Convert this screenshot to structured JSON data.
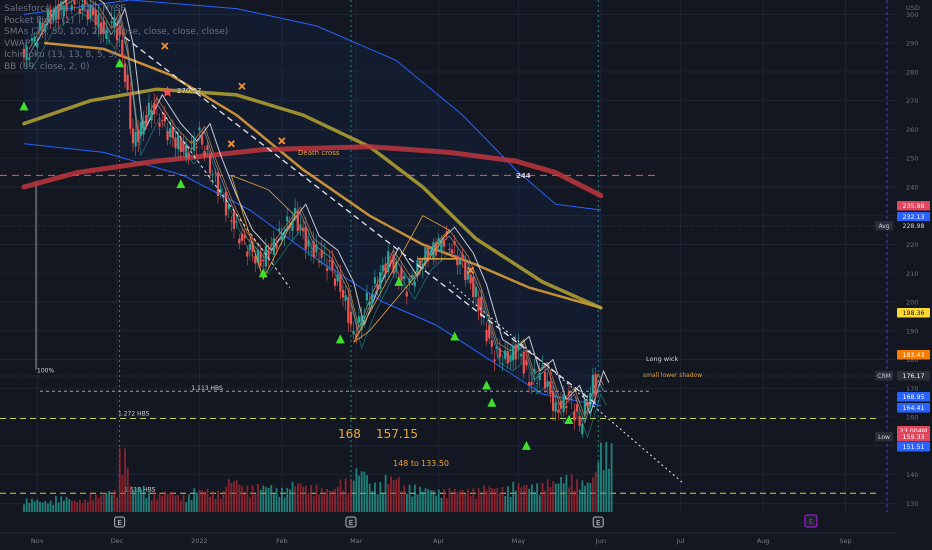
{
  "chart_data": {
    "type": "candlestick",
    "symbol": "CRM",
    "currency": "USD",
    "legend": [
      "Salesforce, Inc. · 1D · NYSE",
      "Pocket Pivot (1)",
      "SMAs (20, 50, 100, 200, close, close, close, close)",
      "VWAP",
      "Ichimoku (13, 13, 8, 5, 3)",
      "BB (89, close, 2, 0)"
    ],
    "y_axis": {
      "min": 127,
      "max": 305,
      "ticks": [
        300,
        290,
        280,
        270,
        260,
        250,
        240,
        230,
        220,
        210,
        200,
        190,
        180,
        170,
        160,
        150,
        140,
        130
      ]
    },
    "x_axis": {
      "ticks": [
        {
          "label": "Nov",
          "day": 5
        },
        {
          "label": "Dec",
          "day": 35
        },
        {
          "label": "2022",
          "day": 66
        },
        {
          "label": "Feb",
          "day": 97
        },
        {
          "label": "Mar",
          "day": 125
        },
        {
          "label": "Apr",
          "day": 156
        },
        {
          "label": "May",
          "day": 186
        },
        {
          "label": "Jun",
          "day": 217
        },
        {
          "label": "Jul",
          "day": 247
        },
        {
          "label": "Aug",
          "day": 278
        },
        {
          "label": "Sep",
          "day": 309
        }
      ]
    },
    "price_path": [
      [
        0,
        285
      ],
      [
        8,
        298
      ],
      [
        18,
        305
      ],
      [
        26,
        300
      ],
      [
        31,
        292
      ],
      [
        34,
        298
      ],
      [
        37,
        286
      ],
      [
        41,
        255
      ],
      [
        48,
        268
      ],
      [
        55,
        258
      ],
      [
        61,
        252
      ],
      [
        66,
        258
      ],
      [
        70,
        247
      ],
      [
        76,
        233
      ],
      [
        82,
        221
      ],
      [
        89,
        214
      ],
      [
        96,
        223
      ],
      [
        102,
        230
      ],
      [
        107,
        219
      ],
      [
        114,
        214
      ],
      [
        120,
        203
      ],
      [
        124,
        188
      ],
      [
        129,
        200
      ],
      [
        137,
        215
      ],
      [
        144,
        205
      ],
      [
        150,
        215
      ],
      [
        158,
        222
      ],
      [
        165,
        213
      ],
      [
        170,
        202
      ],
      [
        176,
        183
      ],
      [
        181,
        180
      ],
      [
        186,
        184
      ],
      [
        190,
        172
      ],
      [
        195,
        176
      ],
      [
        200,
        162
      ],
      [
        205,
        167
      ],
      [
        209,
        157
      ],
      [
        214,
        172
      ],
      [
        216,
        168
      ]
    ],
    "sma_lines": [
      {
        "name": "SMA 50",
        "color": "#e8a53a",
        "points": [
          [
            8,
            290
          ],
          [
            30,
            288
          ],
          [
            55,
            279
          ],
          [
            80,
            265
          ],
          [
            105,
            246
          ],
          [
            130,
            230
          ],
          [
            150,
            220
          ],
          [
            170,
            213
          ],
          [
            190,
            205
          ],
          [
            217,
            198
          ]
        ]
      },
      {
        "name": "SMA 100",
        "color": "#b5a530",
        "points": [
          [
            0,
            262
          ],
          [
            25,
            270
          ],
          [
            50,
            274
          ],
          [
            80,
            272
          ],
          [
            105,
            265
          ],
          [
            130,
            254
          ],
          [
            150,
            240
          ],
          [
            170,
            222
          ],
          [
            195,
            207
          ],
          [
            217,
            198
          ]
        ]
      },
      {
        "name": "SMA 200",
        "color": "#c0353c",
        "points": [
          [
            0,
            240
          ],
          [
            20,
            245
          ],
          [
            50,
            249
          ],
          [
            90,
            253
          ],
          [
            130,
            254
          ],
          [
            160,
            252
          ],
          [
            185,
            249
          ],
          [
            200,
            245
          ],
          [
            217,
            237
          ]
        ]
      }
    ],
    "bb_upper": [
      [
        0,
        300
      ],
      [
        40,
        305
      ],
      [
        80,
        302
      ],
      [
        110,
        296
      ],
      [
        140,
        284
      ],
      [
        165,
        265
      ],
      [
        185,
        246
      ],
      [
        200,
        234
      ],
      [
        217,
        232
      ]
    ],
    "bb_lower": [
      [
        0,
        255
      ],
      [
        30,
        252
      ],
      [
        60,
        244
      ],
      [
        85,
        232
      ],
      [
        110,
        215
      ],
      [
        135,
        200
      ],
      [
        155,
        192
      ],
      [
        175,
        180
      ],
      [
        195,
        168
      ],
      [
        217,
        164
      ]
    ],
    "volume": [
      {
        "day": 0,
        "value": 4.5
      },
      {
        "day": 6,
        "value": 3.8
      },
      {
        "day": 12,
        "value": 5.2
      },
      {
        "day": 18,
        "value": 4.1
      },
      {
        "day": 24,
        "value": 6.0
      },
      {
        "day": 30,
        "value": 7.5
      },
      {
        "day": 36,
        "value": 21.0
      },
      {
        "day": 40,
        "value": 9.0
      },
      {
        "day": 46,
        "value": 6.5
      },
      {
        "day": 52,
        "value": 7.2
      },
      {
        "day": 58,
        "value": 5.8
      },
      {
        "day": 64,
        "value": 8.1
      },
      {
        "day": 70,
        "value": 7.0
      },
      {
        "day": 76,
        "value": 11.5
      },
      {
        "day": 82,
        "value": 8.8
      },
      {
        "day": 88,
        "value": 9.5
      },
      {
        "day": 94,
        "value": 8.0
      },
      {
        "day": 100,
        "value": 10.5
      },
      {
        "day": 106,
        "value": 9.0
      },
      {
        "day": 112,
        "value": 8.2
      },
      {
        "day": 118,
        "value": 11.0
      },
      {
        "day": 124,
        "value": 15.0
      },
      {
        "day": 130,
        "value": 9.8
      },
      {
        "day": 136,
        "value": 12.5
      },
      {
        "day": 142,
        "value": 9.0
      },
      {
        "day": 148,
        "value": 8.6
      },
      {
        "day": 154,
        "value": 7.5
      },
      {
        "day": 160,
        "value": 8.0
      },
      {
        "day": 166,
        "value": 7.8
      },
      {
        "day": 172,
        "value": 9.2
      },
      {
        "day": 178,
        "value": 8.4
      },
      {
        "day": 184,
        "value": 10.0
      },
      {
        "day": 190,
        "value": 9.5
      },
      {
        "day": 196,
        "value": 11.0
      },
      {
        "day": 202,
        "value": 12.5
      },
      {
        "day": 208,
        "value": 10.8
      },
      {
        "day": 214,
        "value": 14.0
      },
      {
        "day": 216,
        "value": 23.0
      }
    ],
    "horizontal_levels": [
      {
        "label": "244",
        "value": 244,
        "color": "#e0475c",
        "style": "dashed"
      },
      {
        "label": "1.272 HBS",
        "value": 159.5,
        "color": "#c9d244",
        "style": "dashed"
      },
      {
        "label": "1.618 HBS",
        "value": 133.5,
        "color": "#c9d244",
        "style": "dashed"
      },
      {
        "label": "1.113 HBS",
        "value": 169,
        "color": "#b5b9c2",
        "style": "dashed"
      },
      {
        "label": "100%",
        "value": 176.5,
        "color": "#b5b9c2",
        "style": "solid"
      }
    ],
    "markers": {
      "pocket_pivots": [
        [
          0,
          268
        ],
        [
          36,
          283
        ],
        [
          59,
          241
        ],
        [
          90,
          210
        ],
        [
          119,
          187
        ],
        [
          141,
          207
        ],
        [
          162,
          188
        ],
        [
          174,
          171
        ],
        [
          176,
          165
        ],
        [
          189,
          150
        ],
        [
          205,
          159
        ]
      ],
      "crosses": [
        [
          53,
          289
        ],
        [
          82,
          275
        ],
        [
          78,
          255
        ],
        [
          97,
          256
        ],
        [
          168,
          211
        ]
      ],
      "star": [
        54,
        273
      ]
    },
    "annotations": [
      {
        "text": "270.57",
        "color": "#d1d4dc"
      },
      {
        "text": "Death cross",
        "color": "#e8a53a"
      },
      {
        "text": "244",
        "color": "#d1d4dc"
      },
      {
        "text": "Long wick",
        "color": "#d1d4dc"
      },
      {
        "text": "small lower shadow",
        "color": "#e8a53a"
      },
      {
        "text": "168",
        "color": "#e8a53a"
      },
      {
        "text": "157.15",
        "color": "#e8a53a"
      },
      {
        "text": "148 to",
        "color": "#e8a53a"
      },
      {
        "text": "133.50",
        "color": "#e8a53a"
      }
    ],
    "right_axis_labels": [
      {
        "text": "235.98",
        "bg": "#e0475c",
        "fg": "#ffffff"
      },
      {
        "text": "232.13",
        "bg": "#2962ff",
        "fg": "#ffffff"
      },
      {
        "text": "228.98",
        "bg": "#131722",
        "fg": "#d1d4dc"
      },
      {
        "text": "198.36",
        "bg": "#fdd835",
        "fg": "#131722"
      },
      {
        "text": "183.43",
        "bg": "#f57c00",
        "fg": "#ffffff"
      },
      {
        "text": "176.17",
        "bg": "#2a2e39",
        "fg": "#ffffff"
      },
      {
        "text": "168.95",
        "bg": "#2962ff",
        "fg": "#ffffff"
      },
      {
        "text": "164.41",
        "bg": "#2962ff",
        "fg": "#ffffff"
      },
      {
        "text": "23.004M",
        "bg": "#e0475c",
        "fg": "#ffffff"
      },
      {
        "text": "159.33",
        "bg": "#e0475c",
        "fg": "#ffffff"
      },
      {
        "text": "151.51",
        "bg": "#2962ff",
        "fg": "#ffffff"
      }
    ],
    "axis_tags": [
      {
        "text": "Avg"
      },
      {
        "text": "CRM"
      },
      {
        "text": "Low"
      }
    ],
    "earnings_badges": [
      {
        "text": "E",
        "day": 36
      },
      {
        "text": "E",
        "day": 123
      },
      {
        "text": "E",
        "day": 216
      },
      {
        "text": "E",
        "day": 296,
        "style": "future"
      }
    ]
  }
}
